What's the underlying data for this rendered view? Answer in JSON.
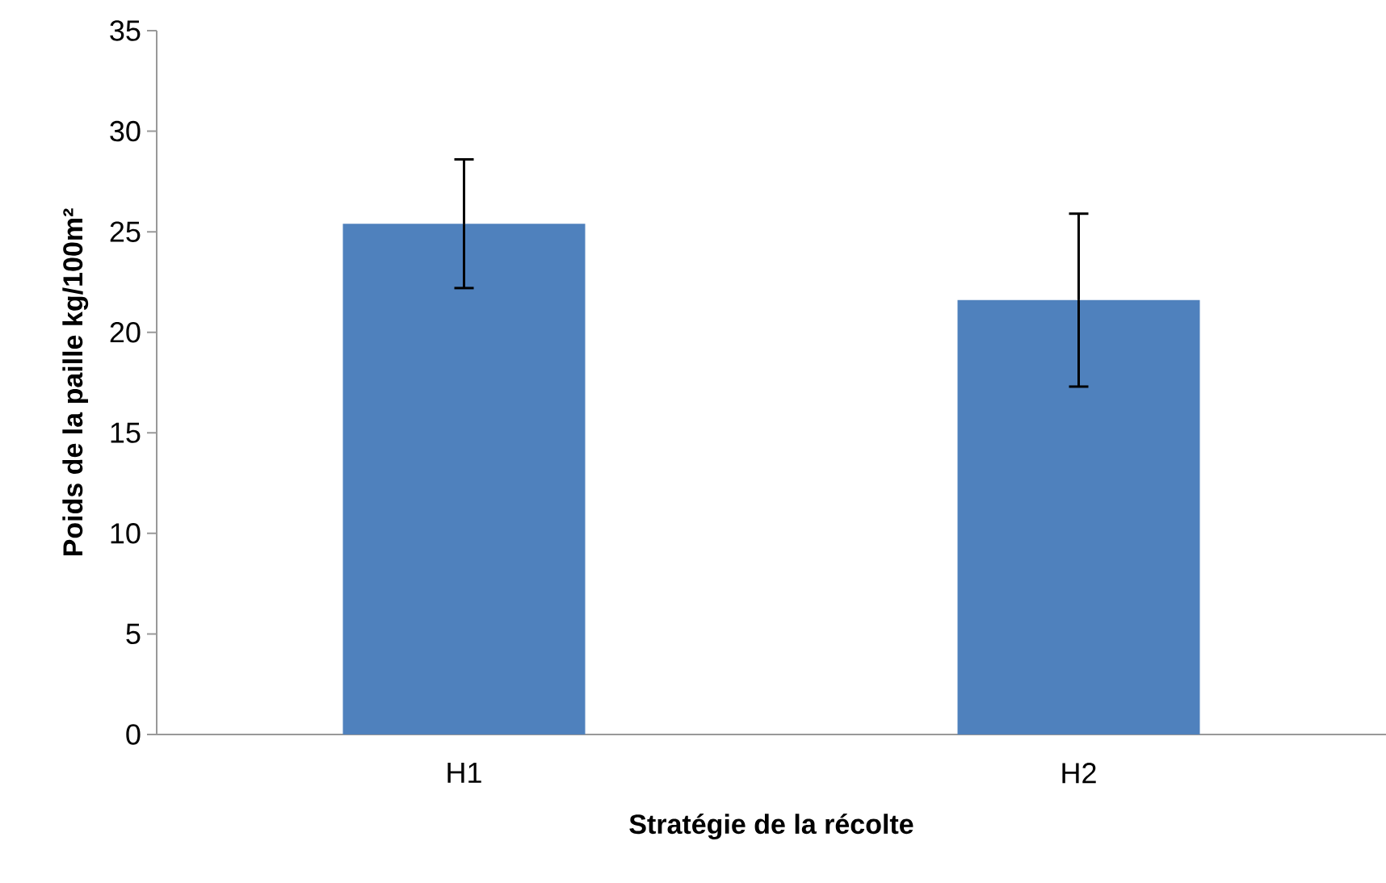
{
  "chart_data": {
    "type": "bar",
    "xlabel": "Stratégie de la récolte",
    "ylabel": "Poids de la paille kg/100m²",
    "categories": [
      "H1",
      "H2"
    ],
    "values": [
      25.4,
      21.6
    ],
    "errors": [
      3.2,
      4.3
    ],
    "color": "#4f81bd",
    "ylim": [
      0,
      35
    ],
    "yticks": [
      0,
      5,
      10,
      15,
      20,
      25,
      30,
      35
    ],
    "grid": false
  }
}
